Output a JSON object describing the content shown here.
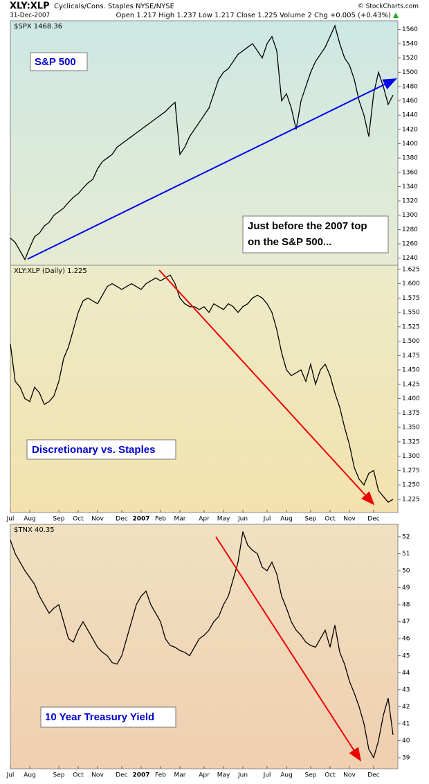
{
  "header": {
    "symbol": "XLY:XLP",
    "description": "Cyclicals/Cons. Staples NYSE/NYSE",
    "date": "31-Dec-2007",
    "quote": "Open 1.217  High 1.237  Low 1.217  Close 1.225  Volume 2  Chg +0.005 (+0.43%)",
    "copyright": "© StockCharts.com"
  },
  "chart_data": [
    {
      "type": "line",
      "annotations": [
        "S&P 500",
        "Just before the 2007 top",
        "on the S&P 500..."
      ],
      "series": [
        {
          "name": "$SPX 1468.36",
          "color": "#000000",
          "values": [
            1268,
            1262,
            1250,
            1238,
            1255,
            1270,
            1275,
            1285,
            1290,
            1300,
            1305,
            1310,
            1318,
            1325,
            1330,
            1338,
            1345,
            1350,
            1365,
            1375,
            1380,
            1385,
            1395,
            1400,
            1405,
            1410,
            1415,
            1420,
            1425,
            1430,
            1435,
            1440,
            1445,
            1452,
            1458,
            1385,
            1395,
            1410,
            1420,
            1430,
            1440,
            1450,
            1470,
            1490,
            1500,
            1505,
            1515,
            1525,
            1530,
            1535,
            1540,
            1530,
            1520,
            1540,
            1550,
            1530,
            1460,
            1470,
            1450,
            1420,
            1460,
            1480,
            1500,
            1515,
            1525,
            1535,
            1550,
            1565,
            1540,
            1520,
            1510,
            1490,
            1460,
            1440,
            1410,
            1470,
            1500,
            1480,
            1455,
            1468
          ]
        }
      ],
      "ylim": [
        1230,
        1572
      ],
      "yticks": [
        1240,
        1260,
        1280,
        1300,
        1320,
        1340,
        1360,
        1380,
        1400,
        1420,
        1440,
        1460,
        1480,
        1500,
        1520,
        1540,
        1560
      ]
    },
    {
      "type": "line",
      "annotations": [
        "Discretionary vs. Staples"
      ],
      "categories": [
        "Jul",
        null,
        null,
        null,
        "Aug",
        null,
        null,
        null,
        null,
        null,
        "Sep",
        null,
        null,
        null,
        "Oct",
        null,
        null,
        null,
        "Nov",
        null,
        null,
        null,
        null,
        "Dec",
        null,
        null,
        null,
        "2007",
        null,
        null,
        null,
        "Feb",
        null,
        null,
        null,
        "Mar",
        null,
        null,
        null,
        null,
        "Apr",
        null,
        null,
        null,
        "May",
        null,
        null,
        null,
        "Jun",
        null,
        null,
        null,
        null,
        "Jul",
        null,
        null,
        null,
        "Aug",
        null,
        null,
        null,
        null,
        "Sep",
        null,
        null,
        null,
        "Oct",
        null,
        null,
        null,
        "Nov",
        null,
        null,
        null,
        null,
        "Dec",
        null,
        null,
        null,
        null
      ],
      "series": [
        {
          "name": "XLY:XLP (Daily) 1.225",
          "color": "#000000",
          "values": [
            1.495,
            1.43,
            1.42,
            1.4,
            1.395,
            1.42,
            1.41,
            1.39,
            1.395,
            1.405,
            1.43,
            1.47,
            1.49,
            1.52,
            1.55,
            1.57,
            1.575,
            1.57,
            1.565,
            1.58,
            1.595,
            1.6,
            1.595,
            1.59,
            1.595,
            1.6,
            1.595,
            1.59,
            1.6,
            1.605,
            1.61,
            1.605,
            1.61,
            1.615,
            1.6,
            1.575,
            1.565,
            1.56,
            1.56,
            1.555,
            1.56,
            1.55,
            1.565,
            1.56,
            1.555,
            1.565,
            1.56,
            1.55,
            1.56,
            1.565,
            1.575,
            1.58,
            1.575,
            1.565,
            1.55,
            1.52,
            1.48,
            1.45,
            1.44,
            1.445,
            1.45,
            1.43,
            1.46,
            1.425,
            1.45,
            1.46,
            1.44,
            1.41,
            1.385,
            1.35,
            1.32,
            1.28,
            1.26,
            1.25,
            1.27,
            1.275,
            1.24,
            1.23,
            1.22,
            1.225
          ]
        }
      ],
      "ylim": [
        1.202,
        1.632
      ],
      "yticks": [
        1.625,
        {
          "value": 1.6,
          "label": "1.600"
        },
        1.575,
        {
          "value": 1.55,
          "label": "1.550"
        },
        1.525,
        {
          "value": 1.5,
          "label": "1.500"
        },
        1.475,
        {
          "value": 1.45,
          "label": "1.450"
        },
        1.425,
        {
          "value": 1.4,
          "label": "1.400"
        },
        1.375,
        {
          "value": 1.35,
          "label": "1.350"
        },
        1.325,
        {
          "value": 1.3,
          "label": "1.300"
        },
        1.275,
        {
          "value": 1.25,
          "label": "1.250"
        },
        1.225
      ]
    },
    {
      "type": "line",
      "annotations": [
        "10 Year Treasury Yield"
      ],
      "categories": [
        "Jul",
        null,
        null,
        null,
        "Aug",
        null,
        null,
        null,
        null,
        null,
        "Sep",
        null,
        null,
        null,
        "Oct",
        null,
        null,
        null,
        "Nov",
        null,
        null,
        null,
        null,
        "Dec",
        null,
        null,
        null,
        "2007",
        null,
        null,
        null,
        "Feb",
        null,
        null,
        null,
        "Mar",
        null,
        null,
        null,
        null,
        "Apr",
        null,
        null,
        null,
        "May",
        null,
        null,
        null,
        "Jun",
        null,
        null,
        null,
        null,
        "Jul",
        null,
        null,
        null,
        "Aug",
        null,
        null,
        null,
        null,
        "Sep",
        null,
        null,
        null,
        "Oct",
        null,
        null,
        null,
        "Nov",
        null,
        null,
        null,
        null,
        "Dec",
        null,
        null,
        null,
        null
      ],
      "series": [
        {
          "name": "$TNX 40.35",
          "color": "#000000",
          "values": [
            51.8,
            51,
            50.5,
            50,
            49.6,
            49.2,
            48.5,
            48,
            47.5,
            47.8,
            48,
            47,
            46,
            45.8,
            46.5,
            47,
            46.5,
            46,
            45.5,
            45.2,
            45,
            44.6,
            44.5,
            45,
            46,
            47,
            48,
            48.5,
            48.8,
            48,
            47.5,
            47,
            46,
            45.6,
            45.5,
            45.3,
            45.2,
            45,
            45.5,
            46,
            46.2,
            46.5,
            47,
            47.3,
            48,
            48.5,
            49.5,
            50.5,
            52.3,
            51.5,
            51.2,
            51,
            50.2,
            50,
            50.5,
            49.8,
            48.5,
            47.8,
            47,
            46.5,
            46.2,
            45.8,
            45.6,
            45.5,
            46,
            46.5,
            45.5,
            46.8,
            45.2,
            44.5,
            43.5,
            42.8,
            42,
            41,
            39.5,
            39,
            40,
            41.5,
            42.5,
            40.35
          ]
        }
      ],
      "ylim": [
        38.35,
        52.73
      ],
      "yticks": [
        39,
        40,
        41,
        42,
        43,
        44,
        45,
        46,
        47,
        48,
        49,
        50,
        51,
        52
      ]
    }
  ]
}
